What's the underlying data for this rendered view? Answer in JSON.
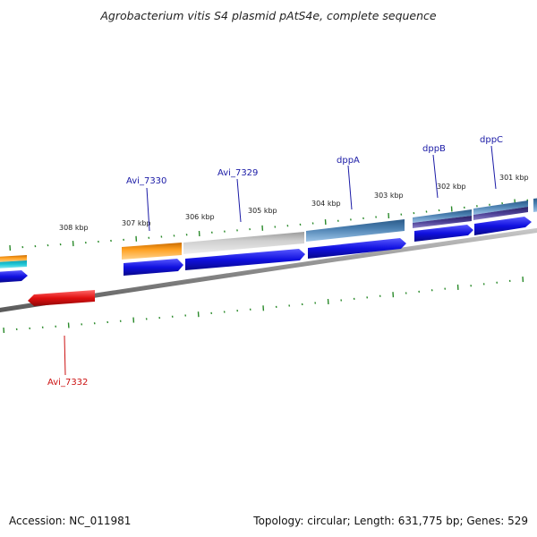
{
  "title": "Agrobacterium vitis S4 plasmid pAtS4e, complete sequence",
  "footer": {
    "accession": "Accession: NC_011981",
    "topology": "Topology: circular; Length: 631,775 bp; Genes: 529"
  },
  "scale_labels": [
    "308 kbp",
    "307 kbp",
    "306 kbp",
    "305 kbp",
    "304 kbp",
    "303 kbp",
    "302 kbp",
    "301 kbp"
  ],
  "gene_labels": [
    {
      "name": "Avi_7330",
      "color": "#1a1aa6"
    },
    {
      "name": "Avi_7329",
      "color": "#1a1aa6"
    },
    {
      "name": "dppA",
      "color": "#1a1aa6"
    },
    {
      "name": "dppB",
      "color": "#1a1aa6"
    },
    {
      "name": "dppC",
      "color": "#1a1aa6"
    },
    {
      "name": "Avi_7332",
      "color": "#cc1111"
    }
  ],
  "colors": {
    "forward_cds": "#1010e0",
    "reverse_cds": "#e01010",
    "backbone": "#8a8a8a",
    "tick": "#2a8a2a",
    "orange_feature": "#f0900a",
    "gray_feature": "#c4c4c4",
    "steel_feature": "#4a7fb0",
    "purple_feature": "#4b3f94",
    "cyan_feature": "#20c8d8"
  }
}
